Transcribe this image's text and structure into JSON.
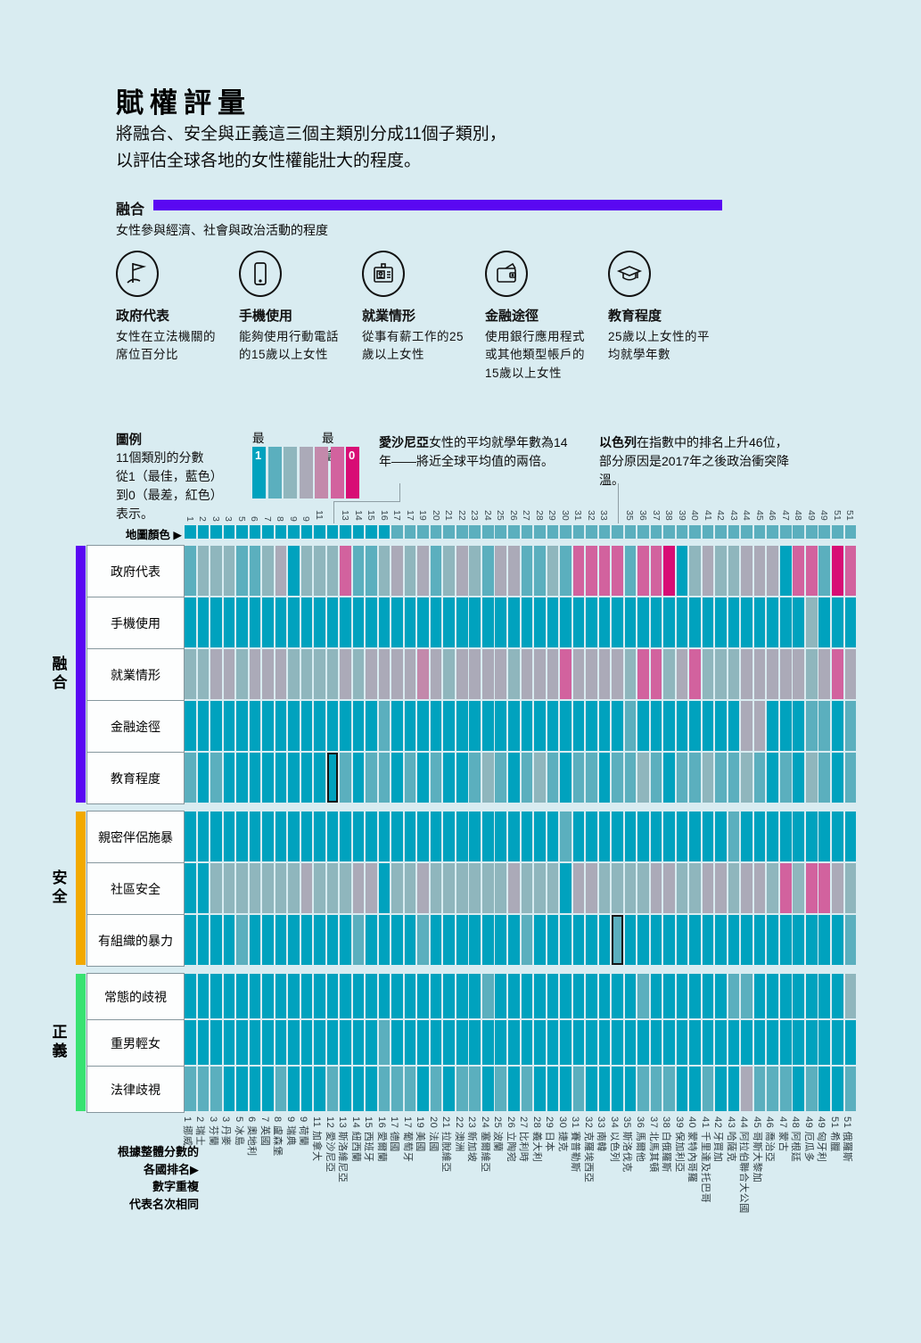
{
  "page": {
    "title": "賦權評量",
    "intro_line1": "將融合、安全與正義這三個主類別分成11個子類別，",
    "intro_line2": "以評估全球各地的女性權能壯大的程度。"
  },
  "inclusion_header": {
    "label": "融合",
    "subtitle": "女性參與經濟、社會與政治活動的程度",
    "bar_color": "#5a08f2"
  },
  "indicators": [
    {
      "icon": "flag-icon",
      "name": "政府代表",
      "desc": "女性在立法機關的席位百分比"
    },
    {
      "icon": "mobile-phone-icon",
      "name": "手機使用",
      "desc": "能夠使用行動電話的15歲以上女性"
    },
    {
      "icon": "id-badge-icon",
      "name": "就業情形",
      "desc": "從事有薪工作的25歲以上女性"
    },
    {
      "icon": "wallet-icon",
      "name": "金融途徑",
      "desc": "使用銀行應用程式或其他類型帳戶的15歲以上女性"
    },
    {
      "icon": "graduation-cap-icon",
      "name": "教育程度",
      "desc": "25歲以上女性的平均就學年數"
    }
  ],
  "legend": {
    "title": "圖例",
    "lines": [
      "11個類別的分數",
      "從1（最佳，藍色）",
      "到0（最差，紅色）",
      "表示。"
    ],
    "best_label": "最佳",
    "worst_label": "最差",
    "best_value": "1",
    "worst_value": "0"
  },
  "annotations": [
    {
      "bold": "愛沙尼亞",
      "text": "女性的平均就學年數為14年——將近全球平均值的兩倍。",
      "target_column": 12,
      "target_row": "教育程度"
    },
    {
      "bold": "以色列",
      "text": "在指數中的排名上升46位，部分原因是2017年之後政治衝突降溫。",
      "target_column": 34,
      "target_row": "有組織的暴力"
    }
  ],
  "map_row_label": "地圖顏色 ▶",
  "footnote": {
    "lines": [
      "根據整體分數的",
      "各國排名▶",
      "數字重複",
      "代表名次相同"
    ]
  },
  "palette": {
    "1": "#00a2be",
    "2": "#5bafbe",
    "3": "#8fb6bd",
    "4": "#abaab8",
    "5": "#c389ab",
    "6": "#d2629e",
    "7": "#d80d75"
  },
  "countries": [
    {
      "rank": "1",
      "name": "挪威"
    },
    {
      "rank": "2",
      "name": "瑞士"
    },
    {
      "rank": "3",
      "name": "芬蘭"
    },
    {
      "rank": "3",
      "name": "丹麥"
    },
    {
      "rank": "5",
      "name": "冰島"
    },
    {
      "rank": "6",
      "name": "奧地利"
    },
    {
      "rank": "7",
      "name": "英國"
    },
    {
      "rank": "8",
      "name": "盧森堡"
    },
    {
      "rank": "9",
      "name": "瑞典"
    },
    {
      "rank": "9",
      "name": "荷蘭"
    },
    {
      "rank": "11",
      "name": "加拿大"
    },
    {
      "rank": "12",
      "name": "愛沙尼亞"
    },
    {
      "rank": "13",
      "name": "斯洛維尼亞"
    },
    {
      "rank": "14",
      "name": "紐西蘭"
    },
    {
      "rank": "15",
      "name": "西班牙"
    },
    {
      "rank": "16",
      "name": "愛爾蘭"
    },
    {
      "rank": "17",
      "name": "德國"
    },
    {
      "rank": "17",
      "name": "葡萄牙"
    },
    {
      "rank": "19",
      "name": "美國"
    },
    {
      "rank": "20",
      "name": "法國"
    },
    {
      "rank": "21",
      "name": "拉脫維亞"
    },
    {
      "rank": "22",
      "name": "澳洲"
    },
    {
      "rank": "23",
      "name": "新加坡"
    },
    {
      "rank": "24",
      "name": "塞爾維亞"
    },
    {
      "rank": "25",
      "name": "波蘭"
    },
    {
      "rank": "26",
      "name": "立陶宛"
    },
    {
      "rank": "27",
      "name": "比利時"
    },
    {
      "rank": "28",
      "name": "義大利"
    },
    {
      "rank": "29",
      "name": "日本"
    },
    {
      "rank": "30",
      "name": "捷克"
    },
    {
      "rank": "31",
      "name": "賽普勒斯"
    },
    {
      "rank": "32",
      "name": "克羅埃西亞"
    },
    {
      "rank": "33",
      "name": "南韓"
    },
    {
      "rank": "34",
      "name": "以色列"
    },
    {
      "rank": "35",
      "name": "斯洛伐克"
    },
    {
      "rank": "36",
      "name": "馬爾他"
    },
    {
      "rank": "37",
      "name": "北馬其頓"
    },
    {
      "rank": "38",
      "name": "白俄羅斯"
    },
    {
      "rank": "39",
      "name": "保加利亞"
    },
    {
      "rank": "40",
      "name": "蒙特內哥羅"
    },
    {
      "rank": "41",
      "name": "千里達及托巴哥"
    },
    {
      "rank": "42",
      "name": "牙買加"
    },
    {
      "rank": "43",
      "name": "哈薩克"
    },
    {
      "rank": "44",
      "name": "阿拉伯聯合大公國"
    },
    {
      "rank": "45",
      "name": "哥斯大黎加"
    },
    {
      "rank": "46",
      "name": "喬治亞"
    },
    {
      "rank": "47",
      "name": "蒙古"
    },
    {
      "rank": "48",
      "name": "阿根廷"
    },
    {
      "rank": "49",
      "name": "厄瓜多"
    },
    {
      "rank": "49",
      "name": "匈牙利"
    },
    {
      "rank": "51",
      "name": "希臘"
    },
    {
      "rank": "51",
      "name": "俄羅斯"
    }
  ],
  "chart_data": {
    "type": "heatmap",
    "title": "賦權評量",
    "columns": 52,
    "scale_note": "色階等級1到7：1=分數1（最佳，藍色），7=分數0（最差，紅色）",
    "hidden_top_rank_columns": [
      12,
      34
    ],
    "map_row": {
      "label": "地圖顏色",
      "levels": [
        1,
        1,
        1,
        1,
        1,
        1,
        1,
        1,
        1,
        1,
        1,
        1,
        1,
        1,
        1,
        1,
        2,
        2,
        2,
        2,
        2,
        2,
        2,
        2,
        2,
        2,
        2,
        2,
        2,
        2,
        2,
        2,
        2,
        2,
        2,
        2,
        2,
        2,
        2,
        2,
        2,
        2,
        2,
        2,
        2,
        2,
        2,
        2,
        2,
        2,
        2,
        2
      ]
    },
    "groups": [
      {
        "name": "融合",
        "color": "#5a08f2",
        "rows": [
          {
            "label": "政府代表",
            "levels": [
              2,
              3,
              3,
              3,
              2,
              2,
              3,
              4,
              1,
              3,
              3,
              3,
              6,
              2,
              2,
              3,
              4,
              3,
              4,
              2,
              3,
              4,
              3,
              2,
              4,
              4,
              2,
              2,
              3,
              2,
              6,
              6,
              6,
              6,
              2,
              6,
              6,
              7,
              1,
              3,
              4,
              3,
              3,
              4,
              4,
              4,
              1,
              6,
              6,
              2,
              7,
              6
            ]
          },
          {
            "label": "手機使用",
            "levels": [
              1,
              1,
              1,
              1,
              1,
              1,
              1,
              1,
              1,
              1,
              1,
              1,
              1,
              1,
              1,
              1,
              1,
              1,
              1,
              1,
              1,
              1,
              1,
              1,
              1,
              1,
              1,
              1,
              1,
              1,
              1,
              1,
              1,
              1,
              1,
              1,
              1,
              1,
              1,
              1,
              1,
              1,
              1,
              1,
              1,
              1,
              1,
              1,
              3,
              1,
              1,
              1
            ]
          },
          {
            "label": "就業情形",
            "levels": [
              3,
              3,
              4,
              4,
              3,
              4,
              4,
              4,
              3,
              3,
              3,
              3,
              4,
              3,
              4,
              4,
              4,
              4,
              5,
              4,
              3,
              4,
              4,
              4,
              4,
              3,
              4,
              4,
              4,
              6,
              4,
              4,
              4,
              4,
              3,
              6,
              6,
              3,
              4,
              6,
              3,
              3,
              3,
              4,
              4,
              4,
              4,
              4,
              3,
              4,
              6,
              4
            ]
          },
          {
            "label": "金融途徑",
            "levels": [
              1,
              1,
              1,
              1,
              1,
              1,
              1,
              1,
              1,
              1,
              1,
              1,
              1,
              1,
              1,
              2,
              1,
              1,
              1,
              1,
              1,
              1,
              1,
              1,
              1,
              1,
              1,
              1,
              1,
              1,
              1,
              1,
              1,
              1,
              2,
              1,
              1,
              1,
              1,
              1,
              1,
              1,
              1,
              4,
              4,
              1,
              1,
              1,
              2,
              2,
              1,
              2
            ]
          },
          {
            "label": "教育程度",
            "levels": [
              2,
              1,
              2,
              1,
              1,
              1,
              1,
              1,
              1,
              1,
              1,
              1,
              2,
              1,
              2,
              2,
              1,
              2,
              1,
              2,
              1,
              1,
              2,
              3,
              2,
              1,
              2,
              3,
              2,
              1,
              2,
              2,
              1,
              2,
              2,
              3,
              2,
              1,
              2,
              2,
              3,
              2,
              2,
              3,
              2,
              1,
              2,
              1,
              3,
              2,
              1,
              2
            ]
          }
        ]
      },
      {
        "name": "安全",
        "color": "#f2a900",
        "rows": [
          {
            "label": "親密伴侶施暴",
            "levels": [
              1,
              1,
              1,
              1,
              1,
              1,
              1,
              1,
              1,
              1,
              1,
              1,
              1,
              1,
              1,
              1,
              1,
              1,
              1,
              1,
              1,
              1,
              1,
              1,
              1,
              1,
              1,
              1,
              1,
              2,
              1,
              1,
              1,
              1,
              1,
              1,
              1,
              1,
              1,
              1,
              1,
              1,
              2,
              1,
              1,
              1,
              1,
              1,
              1,
              1,
              1,
              1
            ]
          },
          {
            "label": "社區安全",
            "levels": [
              1,
              1,
              3,
              3,
              3,
              3,
              3,
              3,
              3,
              4,
              3,
              3,
              3,
              4,
              4,
              1,
              3,
              3,
              4,
              3,
              3,
              3,
              3,
              3,
              3,
              4,
              3,
              3,
              3,
              1,
              4,
              4,
              3,
              3,
              3,
              3,
              4,
              4,
              3,
              3,
              4,
              4,
              3,
              4,
              4,
              3,
              6,
              3,
              6,
              6,
              4,
              3
            ]
          },
          {
            "label": "有組織的暴力",
            "levels": [
              1,
              1,
              1,
              1,
              2,
              1,
              1,
              1,
              1,
              1,
              1,
              1,
              1,
              2,
              1,
              1,
              1,
              1,
              2,
              1,
              1,
              1,
              1,
              1,
              1,
              1,
              2,
              1,
              1,
              1,
              1,
              1,
              1,
              2,
              1,
              1,
              1,
              1,
              1,
              1,
              1,
              1,
              1,
              1,
              1,
              1,
              1,
              1,
              1,
              1,
              1,
              2
            ]
          }
        ]
      },
      {
        "name": "正義",
        "color": "#38e271",
        "rows": [
          {
            "label": "常態的歧視",
            "levels": [
              1,
              1,
              1,
              1,
              1,
              1,
              1,
              1,
              1,
              1,
              1,
              1,
              1,
              1,
              1,
              1,
              1,
              1,
              1,
              1,
              1,
              1,
              1,
              2,
              1,
              1,
              1,
              1,
              1,
              1,
              1,
              1,
              1,
              1,
              1,
              2,
              1,
              1,
              1,
              1,
              1,
              1,
              2,
              2,
              1,
              1,
              1,
              1,
              1,
              1,
              1,
              3
            ]
          },
          {
            "label": "重男輕女",
            "levels": [
              1,
              1,
              1,
              1,
              1,
              1,
              1,
              1,
              1,
              1,
              1,
              1,
              1,
              1,
              1,
              2,
              1,
              1,
              1,
              1,
              1,
              1,
              1,
              1,
              1,
              1,
              1,
              1,
              1,
              1,
              1,
              1,
              1,
              1,
              1,
              1,
              1,
              1,
              1,
              1,
              1,
              1,
              1,
              1,
              1,
              1,
              1,
              1,
              1,
              1,
              1,
              1
            ]
          },
          {
            "label": "法律歧視",
            "levels": [
              2,
              2,
              2,
              1,
              1,
              1,
              1,
              2,
              1,
              1,
              1,
              2,
              1,
              1,
              1,
              2,
              2,
              2,
              1,
              2,
              1,
              2,
              2,
              1,
              2,
              1,
              2,
              1,
              1,
              1,
              2,
              1,
              1,
              1,
              1,
              2,
              2,
              2,
              1,
              1,
              2,
              1,
              1,
              4,
              2,
              2,
              2,
              1,
              2,
              1,
              1,
              2
            ]
          }
        ]
      }
    ],
    "highlight_cells": [
      {
        "row": "教育程度",
        "column": 12
      },
      {
        "row": "有組織的暴力",
        "column": 34
      }
    ]
  }
}
